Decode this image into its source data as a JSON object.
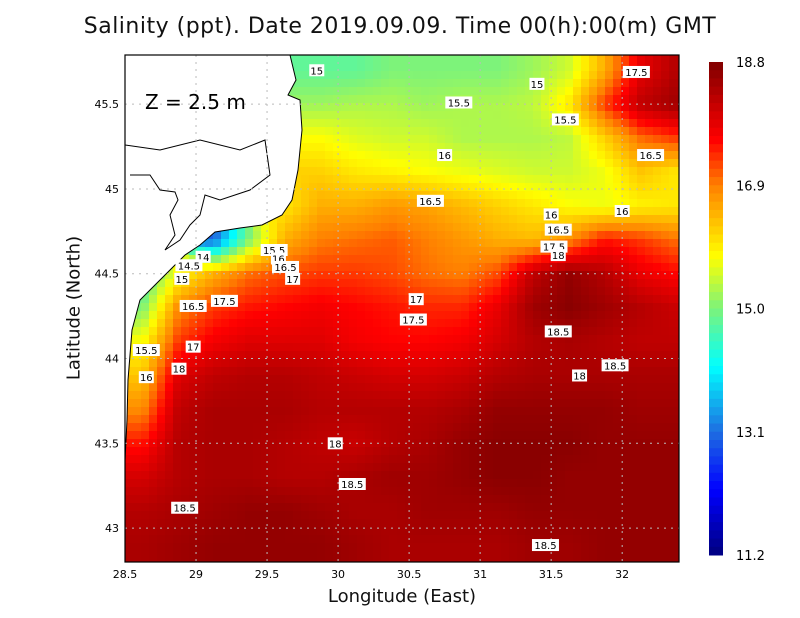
{
  "chart_data": {
    "type": "heatmap",
    "title": "Salinity (ppt). Date 2019.09.09. Time 00(h):00(m) GMT",
    "annotation": "Z = 2.5 m",
    "xlabel": "Longitude (East)",
    "ylabel": "Latitude (North)",
    "xlim": [
      28.5,
      32.4
    ],
    "ylim": [
      42.8,
      45.79
    ],
    "xticks": [
      "28.5",
      "29",
      "29.5",
      "30",
      "30.5",
      "31",
      "31.5",
      "32"
    ],
    "yticks": [
      "43",
      "43.5",
      "44",
      "44.5",
      "45",
      "45.5"
    ],
    "grid": true,
    "colorbar": {
      "min": 11.2,
      "max": 18.8,
      "ticks": [
        "11.2",
        "13.1",
        "15.0",
        "16.9",
        "18.8"
      ],
      "position": "right",
      "colormap": "jet"
    },
    "lon": [
      28.625,
      28.875,
      29.125,
      29.375,
      29.625,
      29.875,
      30.125,
      30.375,
      30.625,
      30.875,
      31.125,
      31.375,
      31.625,
      31.875,
      32.125,
      32.375
    ],
    "lat": [
      45.7,
      45.5,
      45.3,
      45.1,
      44.9,
      44.7,
      44.5,
      44.3,
      44.1,
      43.9,
      43.7,
      43.5,
      43.3,
      43.1,
      42.9
    ],
    "values": [
      [
        null,
        null,
        null,
        null,
        null,
        14.8,
        14.8,
        15.0,
        15.0,
        15.0,
        15.0,
        15.2,
        15.5,
        16.5,
        17.8,
        18.3
      ],
      [
        null,
        null,
        null,
        null,
        null,
        15.2,
        15.3,
        15.3,
        15.2,
        15.3,
        15.3,
        15.4,
        16.0,
        17.3,
        18.2,
        18.5
      ],
      [
        null,
        null,
        null,
        null,
        null,
        15.8,
        15.6,
        15.5,
        15.5,
        15.3,
        15.3,
        15.3,
        15.4,
        16.2,
        17.0,
        17.3
      ],
      [
        null,
        null,
        null,
        null,
        null,
        16.2,
        16.0,
        15.9,
        15.8,
        15.7,
        15.6,
        15.5,
        15.5,
        15.7,
        16.3,
        16.0
      ],
      [
        null,
        null,
        null,
        null,
        16.0,
        16.5,
        16.5,
        16.7,
        16.6,
        16.4,
        16.2,
        16.0,
        15.8,
        15.7,
        15.9,
        16.0
      ],
      [
        null,
        null,
        13.0,
        15.0,
        16.5,
        16.9,
        17.0,
        17.1,
        16.9,
        16.7,
        16.5,
        16.4,
        16.8,
        17.5,
        17.3,
        17.0
      ],
      [
        14.5,
        15.8,
        16.5,
        17.0,
        17.2,
        17.3,
        17.3,
        17.2,
        17.0,
        16.9,
        17.2,
        18.2,
        18.6,
        18.3,
        17.8,
        17.6
      ],
      [
        15.0,
        16.8,
        17.3,
        17.5,
        17.6,
        17.7,
        17.6,
        17.5,
        17.4,
        17.4,
        17.8,
        18.5,
        18.7,
        18.5,
        18.3,
        18.1
      ],
      [
        15.8,
        17.3,
        17.7,
        17.9,
        17.9,
        17.9,
        17.7,
        17.6,
        17.6,
        17.7,
        18.0,
        18.3,
        18.4,
        18.3,
        18.2,
        18.2
      ],
      [
        16.3,
        17.9,
        18.2,
        18.3,
        18.3,
        18.2,
        18.1,
        18.0,
        18.0,
        18.1,
        18.3,
        18.4,
        18.4,
        18.4,
        18.4,
        18.4
      ],
      [
        16.8,
        18.2,
        18.4,
        18.4,
        18.4,
        18.3,
        18.3,
        18.3,
        18.3,
        18.4,
        18.6,
        18.6,
        18.6,
        18.6,
        18.5,
        18.5
      ],
      [
        17.5,
        18.3,
        18.4,
        18.4,
        18.3,
        18.2,
        18.1,
        18.3,
        18.4,
        18.6,
        18.7,
        18.7,
        18.7,
        18.6,
        18.6,
        18.6
      ],
      [
        18.0,
        18.3,
        18.4,
        18.4,
        18.3,
        18.3,
        18.4,
        18.5,
        18.5,
        18.6,
        18.7,
        18.7,
        18.6,
        18.6,
        18.6,
        18.6
      ],
      [
        18.3,
        18.4,
        18.5,
        18.6,
        18.6,
        18.5,
        18.4,
        18.4,
        18.5,
        18.5,
        18.5,
        18.6,
        18.6,
        18.6,
        18.6,
        18.6
      ],
      [
        18.4,
        18.5,
        18.6,
        18.6,
        18.6,
        18.6,
        18.5,
        18.4,
        18.4,
        18.4,
        18.4,
        18.5,
        18.5,
        18.6,
        18.6,
        18.6
      ]
    ],
    "contour_labels": [
      {
        "text": "15",
        "lon": 29.85,
        "lat": 45.7
      },
      {
        "text": "15",
        "lon": 31.4,
        "lat": 45.62
      },
      {
        "text": "17.5",
        "lon": 32.1,
        "lat": 45.69
      },
      {
        "text": "15.5",
        "lon": 30.85,
        "lat": 45.51
      },
      {
        "text": "15.5",
        "lon": 31.6,
        "lat": 45.41
      },
      {
        "text": "16.5",
        "lon": 32.2,
        "lat": 45.2
      },
      {
        "text": "16",
        "lon": 30.75,
        "lat": 45.2
      },
      {
        "text": "16.5",
        "lon": 30.65,
        "lat": 44.93
      },
      {
        "text": "16",
        "lon": 31.5,
        "lat": 44.85
      },
      {
        "text": "16",
        "lon": 32.0,
        "lat": 44.87
      },
      {
        "text": "16.5",
        "lon": 31.55,
        "lat": 44.76
      },
      {
        "text": "17.5",
        "lon": 31.52,
        "lat": 44.66
      },
      {
        "text": "18",
        "lon": 31.55,
        "lat": 44.61
      },
      {
        "text": "15.5",
        "lon": 29.55,
        "lat": 44.64
      },
      {
        "text": "16",
        "lon": 29.58,
        "lat": 44.59
      },
      {
        "text": "16.5",
        "lon": 29.63,
        "lat": 44.54
      },
      {
        "text": "17",
        "lon": 29.68,
        "lat": 44.47
      },
      {
        "text": "14",
        "lon": 29.05,
        "lat": 44.6
      },
      {
        "text": "14.5",
        "lon": 28.95,
        "lat": 44.55
      },
      {
        "text": "15",
        "lon": 28.9,
        "lat": 44.47
      },
      {
        "text": "17.5",
        "lon": 29.2,
        "lat": 44.34
      },
      {
        "text": "16.5",
        "lon": 28.98,
        "lat": 44.31
      },
      {
        "text": "17",
        "lon": 30.55,
        "lat": 44.35
      },
      {
        "text": "17.5",
        "lon": 30.53,
        "lat": 44.23
      },
      {
        "text": "18.5",
        "lon": 31.55,
        "lat": 44.16
      },
      {
        "text": "15.5",
        "lon": 28.65,
        "lat": 44.05
      },
      {
        "text": "17",
        "lon": 28.98,
        "lat": 44.07
      },
      {
        "text": "18.5",
        "lon": 31.95,
        "lat": 43.96
      },
      {
        "text": "18",
        "lon": 31.7,
        "lat": 43.9
      },
      {
        "text": "18",
        "lon": 28.88,
        "lat": 43.94
      },
      {
        "text": "16",
        "lon": 28.65,
        "lat": 43.89
      },
      {
        "text": "18",
        "lon": 29.98,
        "lat": 43.5
      },
      {
        "text": "18.5",
        "lon": 30.1,
        "lat": 43.26
      },
      {
        "text": "18.5",
        "lon": 28.92,
        "lat": 43.12
      },
      {
        "text": "18.5",
        "lon": 31.46,
        "lat": 42.9
      }
    ]
  }
}
